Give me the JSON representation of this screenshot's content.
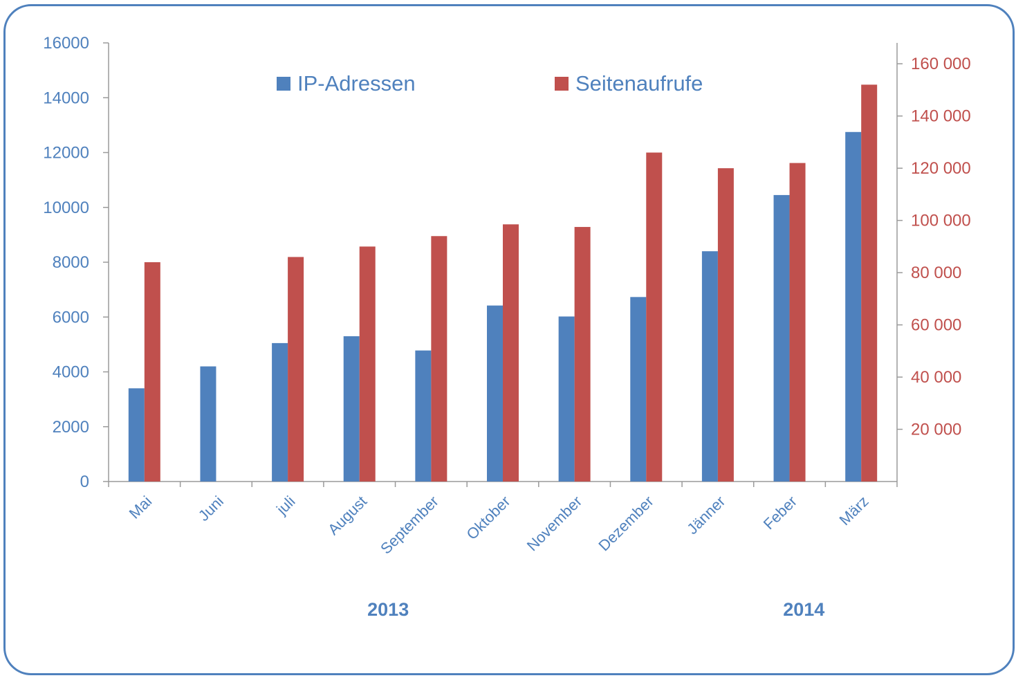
{
  "chart_data": {
    "type": "bar",
    "categories": [
      "Mai",
      "Juni",
      "juli",
      "August",
      "September",
      "Oktober",
      "November",
      "Dezember",
      "Jänner",
      "Feber",
      "März"
    ],
    "series": [
      {
        "name": "IP-Adressen",
        "axis": "left",
        "color": "#4f81bd",
        "values": [
          3400,
          4200,
          5050,
          5300,
          4780,
          6420,
          6020,
          6730,
          8400,
          10450,
          12750
        ]
      },
      {
        "name": "Seitenaufrufe",
        "axis": "right",
        "color": "#c0504d",
        "values": [
          84000,
          null,
          86000,
          90000,
          94000,
          98500,
          97500,
          126000,
          120000,
          122000,
          152000
        ]
      }
    ],
    "y_left": {
      "min": 0,
      "max": 16000,
      "ticks": [
        "0",
        "2000",
        "4000",
        "6000",
        "8000",
        "10000",
        "12000",
        "14000",
        "16000"
      ]
    },
    "y_right": {
      "min": 0,
      "max": 168000,
      "ticks": [
        "20 000",
        "40 000",
        "60 000",
        "80 000",
        "100 000",
        "120 000",
        "140 000",
        "160 000"
      ]
    },
    "legend_position": "top-center",
    "grid": false,
    "annotations": [
      {
        "text": "2013",
        "category_index": 3.4
      },
      {
        "text": "2014",
        "category_index": 9.2
      }
    ]
  }
}
